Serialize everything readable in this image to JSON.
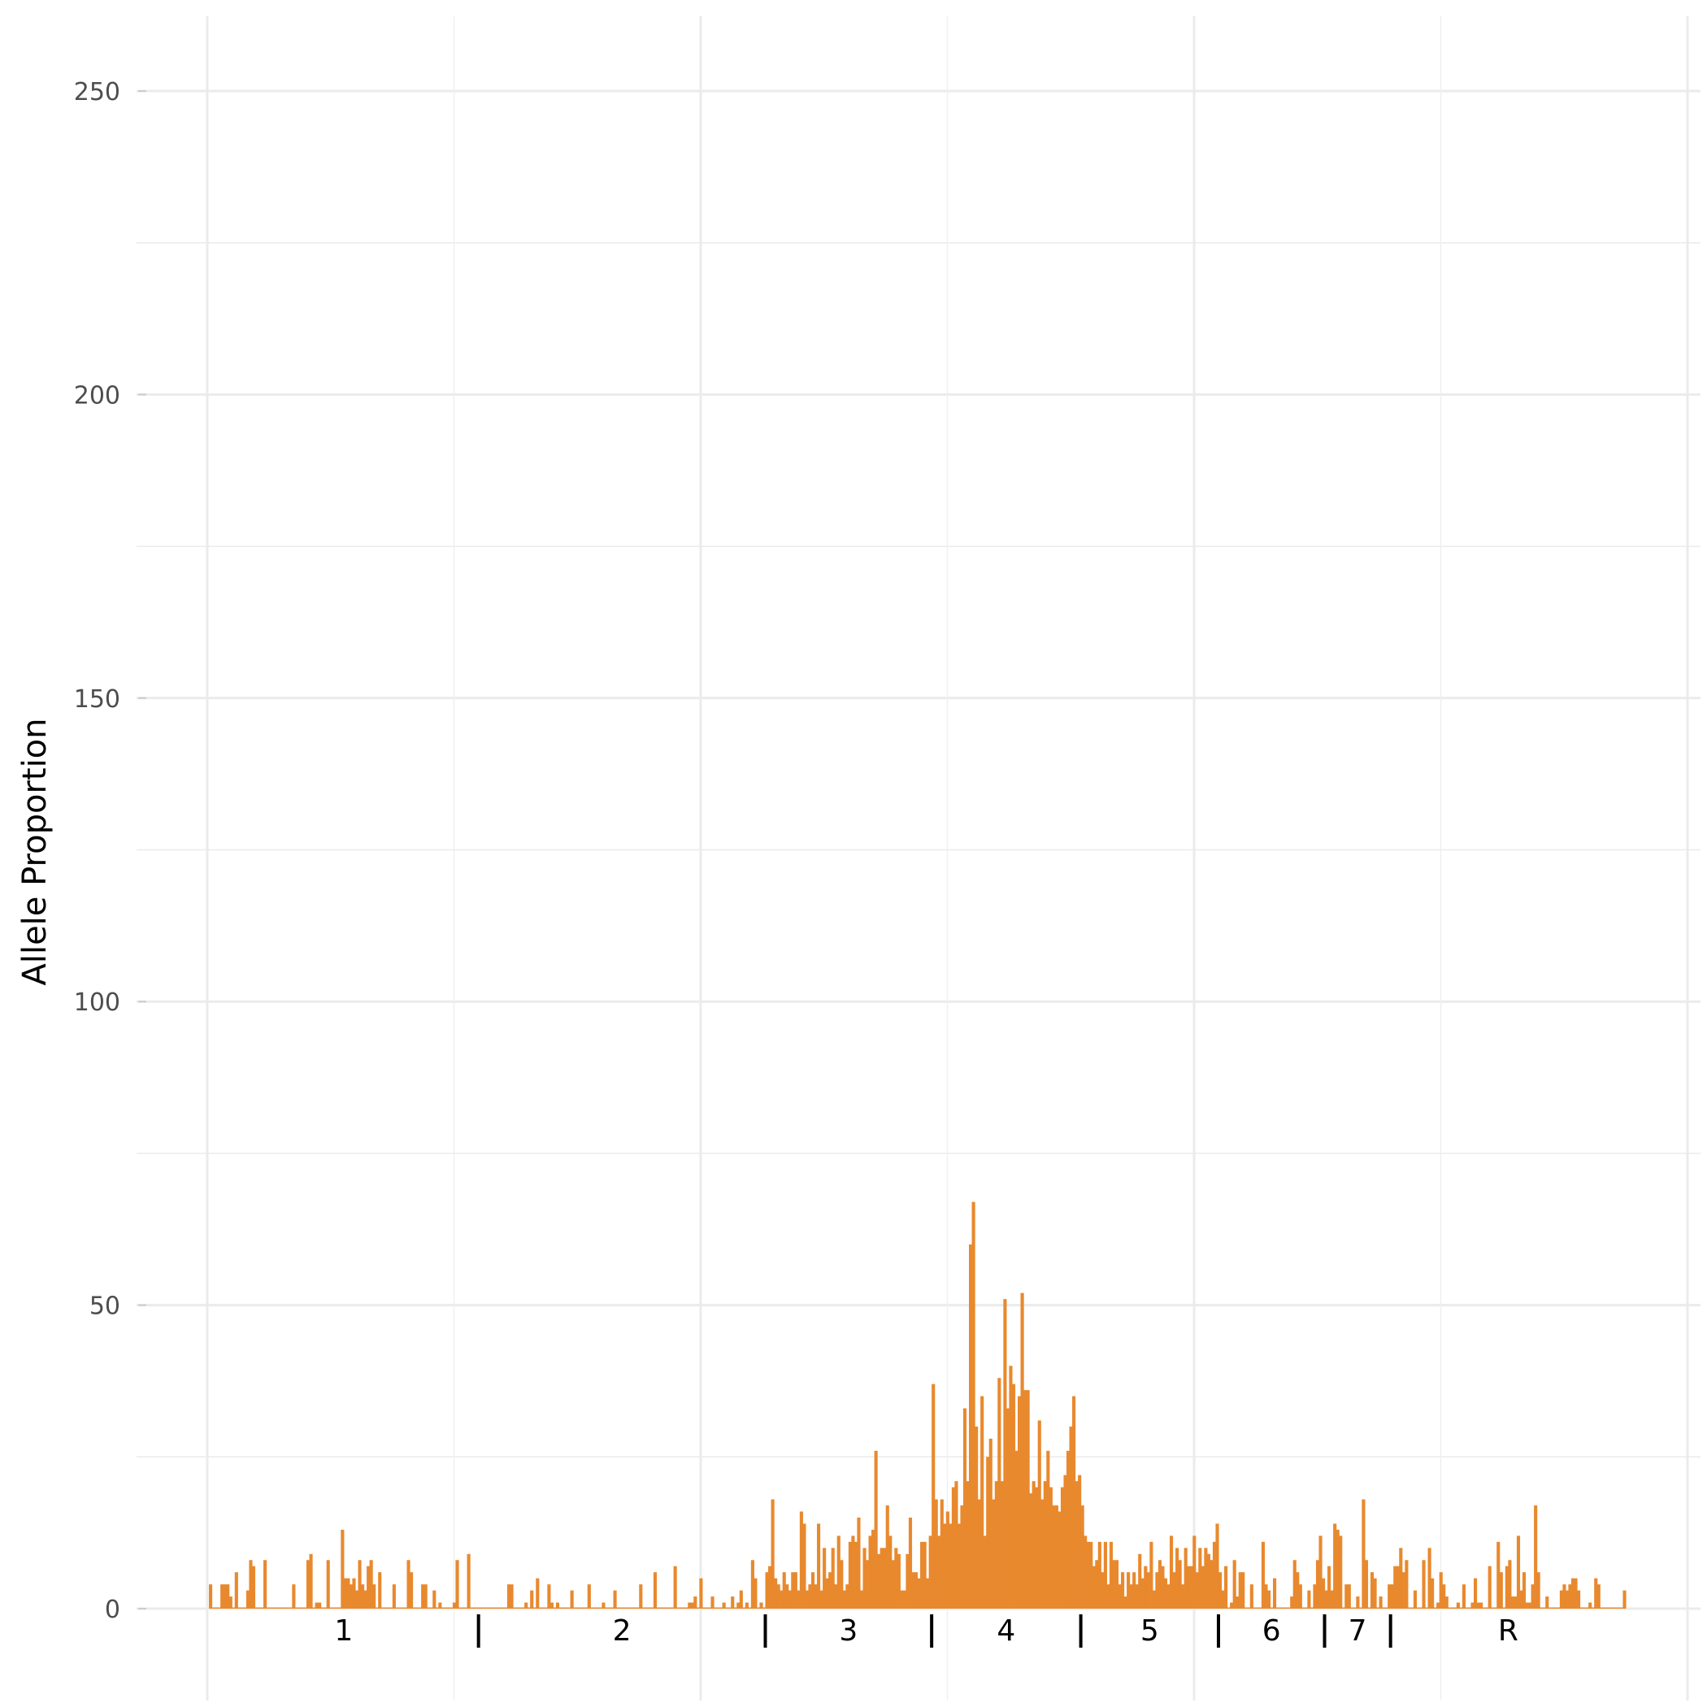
{
  "chart_data": {
    "type": "bar",
    "title": "",
    "xlabel": "",
    "ylabel": "Allele Proportion",
    "ylim": [
      0,
      262
    ],
    "y_ticks": [
      0,
      50,
      100,
      150,
      200,
      250
    ],
    "grid": true,
    "legend": "none",
    "bar_color": "#E8892E",
    "segments": [
      {
        "label": "1",
        "values": [
          4,
          0,
          0,
          0,
          4,
          4,
          4,
          2,
          0,
          6,
          0,
          0,
          0,
          3,
          8,
          7,
          0,
          0,
          0,
          8,
          0,
          0,
          0,
          0,
          0,
          0,
          0,
          0,
          0,
          4,
          0,
          0,
          0,
          0,
          8,
          9,
          0,
          1,
          1,
          0,
          0,
          8,
          0,
          0,
          0,
          0,
          13,
          5,
          5,
          4,
          5,
          3,
          8,
          4,
          3,
          7,
          8,
          4,
          0,
          6,
          0,
          0,
          0,
          0,
          4,
          0,
          0,
          0,
          0,
          8,
          6,
          0,
          0,
          0,
          4,
          4,
          0,
          0,
          3,
          0,
          1,
          0,
          0,
          0,
          0,
          1,
          8,
          0,
          0,
          0,
          9,
          0,
          0,
          0
        ]
      },
      {
        "label": "2",
        "values": [
          0,
          0,
          0,
          0,
          0,
          0,
          0,
          0,
          0,
          0,
          4,
          4,
          0,
          0,
          0,
          0,
          1,
          0,
          3,
          0,
          5,
          0,
          0,
          0,
          4,
          1,
          0,
          1,
          0,
          0,
          0,
          0,
          3,
          0,
          0,
          0,
          0,
          0,
          4,
          0,
          0,
          0,
          0,
          1,
          0,
          0,
          0,
          3,
          0,
          0,
          0,
          0,
          0,
          0,
          0,
          0,
          4,
          0,
          0,
          0,
          0,
          6,
          0,
          0,
          0,
          0,
          0,
          0,
          7,
          0,
          0,
          0,
          0,
          1,
          1,
          2,
          0,
          5,
          0,
          0,
          0,
          2,
          0,
          0,
          0,
          1,
          0,
          0,
          2,
          0,
          1,
          3,
          0,
          1,
          0,
          8,
          5,
          0,
          1,
          0
        ]
      },
      {
        "label": "3",
        "values": [
          6,
          7,
          18,
          5,
          4,
          3,
          6,
          4,
          3,
          6,
          6,
          3,
          16,
          14,
          3,
          4,
          6,
          4,
          14,
          3,
          10,
          5,
          6,
          10,
          4,
          12,
          8,
          3,
          4,
          11,
          12,
          11,
          15,
          3,
          10,
          8,
          12,
          13,
          26,
          9,
          10,
          10,
          17,
          12,
          8,
          10,
          9,
          3,
          3,
          9,
          15,
          6,
          6,
          5,
          11,
          11,
          5,
          12
        ]
      },
      {
        "label": "4",
        "values": [
          37,
          18,
          12,
          18,
          14,
          16,
          14,
          20,
          21,
          14,
          17,
          33,
          21,
          60,
          67,
          30,
          18,
          35,
          12,
          25,
          28,
          18,
          21,
          38,
          21,
          51,
          33,
          40,
          37,
          26,
          35,
          52,
          36,
          36,
          19,
          21,
          20,
          31,
          18,
          21,
          26,
          20,
          17,
          17,
          16,
          20,
          22,
          26,
          30,
          35,
          21,
          22
        ]
      },
      {
        "label": "5",
        "values": [
          17,
          12,
          11,
          11,
          7,
          8,
          11,
          6,
          11,
          4,
          11,
          8,
          8,
          4,
          6,
          2,
          6,
          4,
          6,
          4,
          9,
          5,
          7,
          6,
          11,
          3,
          6,
          8,
          7,
          5,
          4,
          12,
          6,
          10,
          8,
          4,
          10,
          7,
          7,
          12,
          6,
          10,
          7,
          10,
          9,
          8,
          11,
          14
        ]
      },
      {
        "label": "6",
        "values": [
          6,
          3,
          7,
          0,
          1,
          8,
          2,
          6,
          6,
          0,
          0,
          4,
          0,
          0,
          0,
          11,
          4,
          3,
          0,
          5,
          0,
          0,
          0,
          0,
          0,
          2,
          8,
          6,
          4,
          0,
          0,
          3,
          0,
          4,
          8,
          12,
          5
        ]
      },
      {
        "label": "7",
        "values": [
          3,
          7,
          3,
          14,
          13,
          12,
          0,
          4,
          4,
          0,
          0,
          2,
          0,
          18,
          8,
          0,
          6,
          5,
          0,
          2,
          0,
          0,
          4
        ]
      },
      {
        "label": "R",
        "values": [
          4,
          7,
          7,
          10,
          6,
          8,
          0,
          0,
          3,
          0,
          0,
          8,
          0,
          10,
          5,
          0,
          1,
          6,
          4,
          2,
          0,
          0,
          0,
          1,
          0,
          4,
          0,
          0,
          1,
          5,
          1,
          1,
          0,
          0,
          7,
          0,
          0,
          11,
          6,
          0,
          7,
          8,
          2,
          2,
          12,
          3,
          6,
          1,
          1,
          4,
          17,
          6,
          0,
          0,
          2,
          0,
          0,
          0,
          0,
          3,
          4,
          3,
          4,
          5,
          5,
          3,
          0,
          0,
          0,
          1,
          0,
          5,
          4,
          0,
          0,
          0,
          0,
          0,
          0,
          0,
          0,
          3
        ]
      }
    ]
  }
}
